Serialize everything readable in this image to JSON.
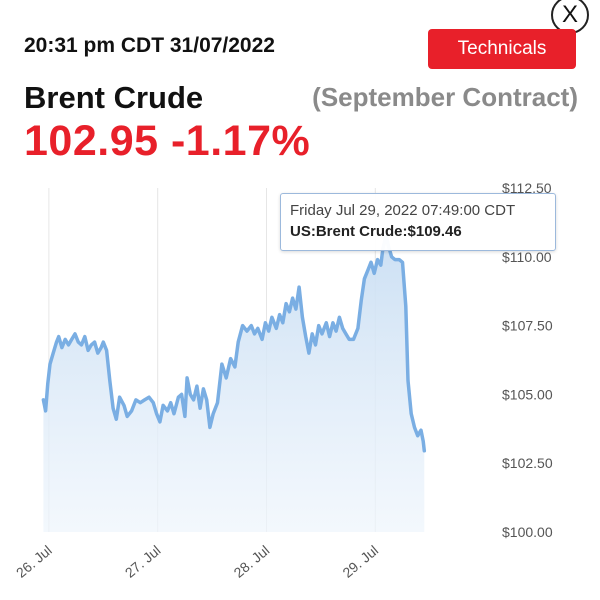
{
  "header": {
    "close_label": "X",
    "timestamp": "20:31 pm CDT 31/07/2022",
    "technicals_label": "Technicals",
    "instrument": "Brent Crude",
    "contract": "(September Contract)",
    "price": "102.95",
    "change": "-1.17%",
    "accent_color": "#e8202a"
  },
  "tooltip": {
    "date": "Friday Jul 29, 2022 07:49:00 CDT",
    "series_label": "US:Brent Crude:",
    "value": "$109.46"
  },
  "chart_data": {
    "type": "area",
    "x_unit": "days (Jul 2022)",
    "xlim": [
      25.9,
      30.1
    ],
    "ylim": [
      100,
      112.5
    ],
    "x_tick_values": [
      26,
      27,
      28,
      29
    ],
    "x_tick_labels": [
      "26. Jul",
      "27. Jul",
      "28. Jul",
      "29. Jul"
    ],
    "y_tick_values": [
      100,
      102.5,
      105,
      107.5,
      110,
      112.5
    ],
    "y_tick_labels": [
      "$100.00",
      "$102.50",
      "$105.00",
      "$107.50",
      "$110.00",
      "$112.50"
    ],
    "grid": "vertical",
    "line_color": "#7aaee3",
    "fill_color": "#d6e7f7",
    "series": [
      {
        "name": "US:Brent Crude",
        "points": [
          [
            25.95,
            104.8
          ],
          [
            25.97,
            104.4
          ],
          [
            25.99,
            105.4
          ],
          [
            26.01,
            106.1
          ],
          [
            26.04,
            106.5
          ],
          [
            26.07,
            106.9
          ],
          [
            26.09,
            107.1
          ],
          [
            26.12,
            106.7
          ],
          [
            26.15,
            107.0
          ],
          [
            26.18,
            106.8
          ],
          [
            26.21,
            107.0
          ],
          [
            26.24,
            107.2
          ],
          [
            26.27,
            106.9
          ],
          [
            26.3,
            106.8
          ],
          [
            26.33,
            107.1
          ],
          [
            26.36,
            106.6
          ],
          [
            26.39,
            106.8
          ],
          [
            26.42,
            106.9
          ],
          [
            26.45,
            106.5
          ],
          [
            26.48,
            106.7
          ],
          [
            26.5,
            106.9
          ],
          [
            26.53,
            106.6
          ],
          [
            26.56,
            105.5
          ],
          [
            26.59,
            104.5
          ],
          [
            26.62,
            104.1
          ],
          [
            26.65,
            104.9
          ],
          [
            26.69,
            104.6
          ],
          [
            26.72,
            104.2
          ],
          [
            26.76,
            104.4
          ],
          [
            26.8,
            104.8
          ],
          [
            26.84,
            104.7
          ],
          [
            26.88,
            104.8
          ],
          [
            26.92,
            104.9
          ],
          [
            26.96,
            104.7
          ],
          [
            26.99,
            104.3
          ],
          [
            27.02,
            104.0
          ],
          [
            27.05,
            104.6
          ],
          [
            27.09,
            104.4
          ],
          [
            27.12,
            104.7
          ],
          [
            27.15,
            104.3
          ],
          [
            27.19,
            104.9
          ],
          [
            27.22,
            105.0
          ],
          [
            27.25,
            104.2
          ],
          [
            27.27,
            105.6
          ],
          [
            27.3,
            105.0
          ],
          [
            27.33,
            104.8
          ],
          [
            27.36,
            105.3
          ],
          [
            27.39,
            104.5
          ],
          [
            27.42,
            105.2
          ],
          [
            27.45,
            104.8
          ],
          [
            27.48,
            103.8
          ],
          [
            27.51,
            104.3
          ],
          [
            27.55,
            104.7
          ],
          [
            27.59,
            106.1
          ],
          [
            27.63,
            105.6
          ],
          [
            27.67,
            106.3
          ],
          [
            27.71,
            106.0
          ],
          [
            27.74,
            106.9
          ],
          [
            27.78,
            107.5
          ],
          [
            27.82,
            107.3
          ],
          [
            27.86,
            107.5
          ],
          [
            27.89,
            107.2
          ],
          [
            27.92,
            107.4
          ],
          [
            27.96,
            107.0
          ],
          [
            27.99,
            107.6
          ],
          [
            28.02,
            107.3
          ],
          [
            28.05,
            107.8
          ],
          [
            28.09,
            107.4
          ],
          [
            28.12,
            107.9
          ],
          [
            28.15,
            107.6
          ],
          [
            28.18,
            108.3
          ],
          [
            28.21,
            108.0
          ],
          [
            28.24,
            108.5
          ],
          [
            28.27,
            108.1
          ],
          [
            28.3,
            108.9
          ],
          [
            28.33,
            107.8
          ],
          [
            28.36,
            107.1
          ],
          [
            28.39,
            106.5
          ],
          [
            28.42,
            107.2
          ],
          [
            28.45,
            106.8
          ],
          [
            28.48,
            107.5
          ],
          [
            28.51,
            107.2
          ],
          [
            28.55,
            107.6
          ],
          [
            28.58,
            107.1
          ],
          [
            28.61,
            107.6
          ],
          [
            28.64,
            107.3
          ],
          [
            28.67,
            107.8
          ],
          [
            28.7,
            107.4
          ],
          [
            28.73,
            107.2
          ],
          [
            28.76,
            107.0
          ],
          [
            28.8,
            107.0
          ],
          [
            28.84,
            107.4
          ],
          [
            28.87,
            108.4
          ],
          [
            28.9,
            109.2
          ],
          [
            28.93,
            109.5
          ],
          [
            28.96,
            109.8
          ],
          [
            28.99,
            109.4
          ],
          [
            29.02,
            109.9
          ],
          [
            29.05,
            109.7
          ],
          [
            29.07,
            110.3
          ],
          [
            29.1,
            110.8
          ],
          [
            29.12,
            110.4
          ],
          [
            29.15,
            110.0
          ],
          [
            29.18,
            109.9
          ],
          [
            29.22,
            109.9
          ],
          [
            29.25,
            109.8
          ],
          [
            29.28,
            108.2
          ],
          [
            29.3,
            105.5
          ],
          [
            29.33,
            104.3
          ],
          [
            29.36,
            103.8
          ],
          [
            29.39,
            103.5
          ],
          [
            29.42,
            103.7
          ],
          [
            29.44,
            103.3
          ],
          [
            29.45,
            102.95
          ]
        ]
      }
    ]
  }
}
